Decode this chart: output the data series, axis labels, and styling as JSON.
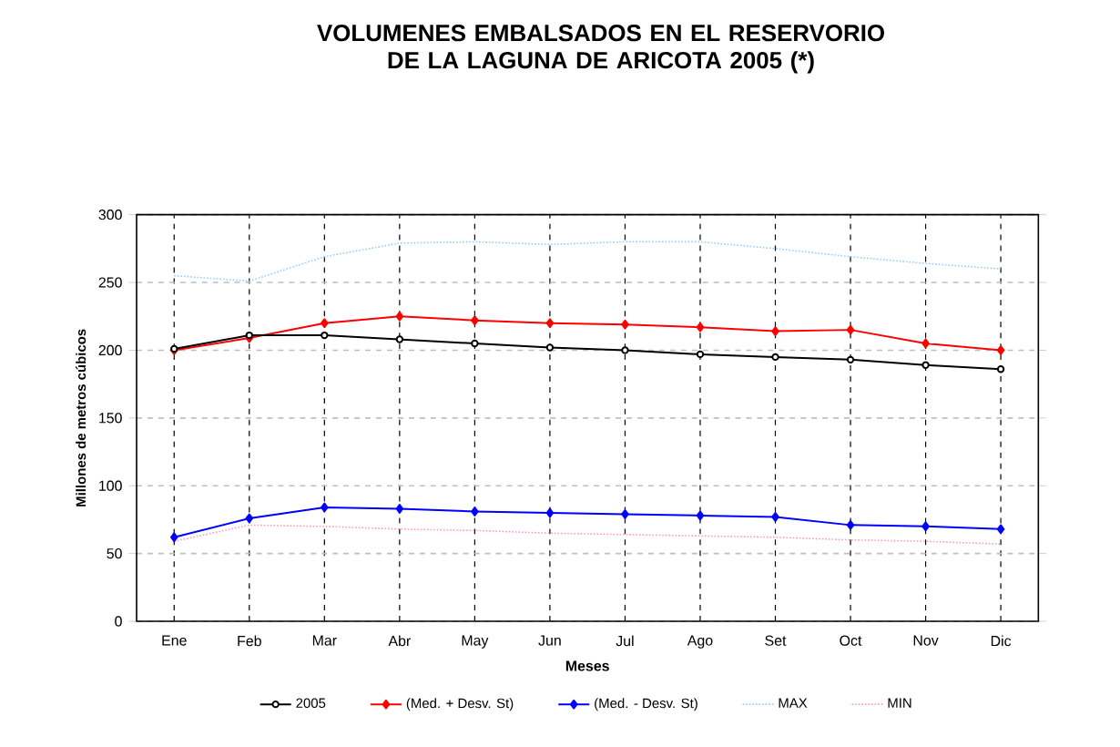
{
  "chart_data": {
    "type": "line",
    "title": "VOLUMENES EMBALSADOS EN EL RESERVORIO DE LA LAGUNA DE ARICOTA 2005 (*)",
    "xlabel": "Meses",
    "ylabel": "Millones de metros cúbicos",
    "categories": [
      "Ene",
      "Feb",
      "Mar",
      "Abr",
      "May",
      "Jun",
      "Jul",
      "Ago",
      "Set",
      "Oct",
      "Nov",
      "Dic"
    ],
    "series": [
      {
        "name": "2005",
        "color": "#000000",
        "marker": "circle",
        "line_style": "solid",
        "values": [
          201,
          211,
          211,
          208,
          205,
          202,
          200,
          197,
          195,
          193,
          189,
          186
        ]
      },
      {
        "name": "(Med. + Desv. St)",
        "color": "#ff0000",
        "marker": "diamond",
        "line_style": "solid",
        "values": [
          200,
          209,
          220,
          225,
          222,
          220,
          219,
          217,
          214,
          215,
          205,
          200
        ]
      },
      {
        "name": "(Med. - Desv. St)",
        "color": "#0000ff",
        "marker": "diamond",
        "line_style": "solid",
        "values": [
          62,
          76,
          84,
          83,
          81,
          80,
          79,
          78,
          77,
          71,
          70,
          68
        ]
      },
      {
        "name": "MAX",
        "color": "#99ccff",
        "marker": "none",
        "line_style": "dotted",
        "values": [
          255,
          251,
          269,
          279,
          280,
          278,
          280,
          280,
          275,
          269,
          264,
          260
        ]
      },
      {
        "name": "MIN",
        "color": "#ff99cc",
        "marker": "none",
        "line_style": "dotted",
        "values": [
          59,
          71,
          70,
          68,
          67,
          65,
          64,
          63,
          62,
          60,
          59,
          57
        ]
      }
    ],
    "ylim": [
      0,
      300
    ],
    "yticks": [
      0,
      50,
      100,
      150,
      200,
      250,
      300
    ],
    "grid": true,
    "legend": "bottom"
  }
}
